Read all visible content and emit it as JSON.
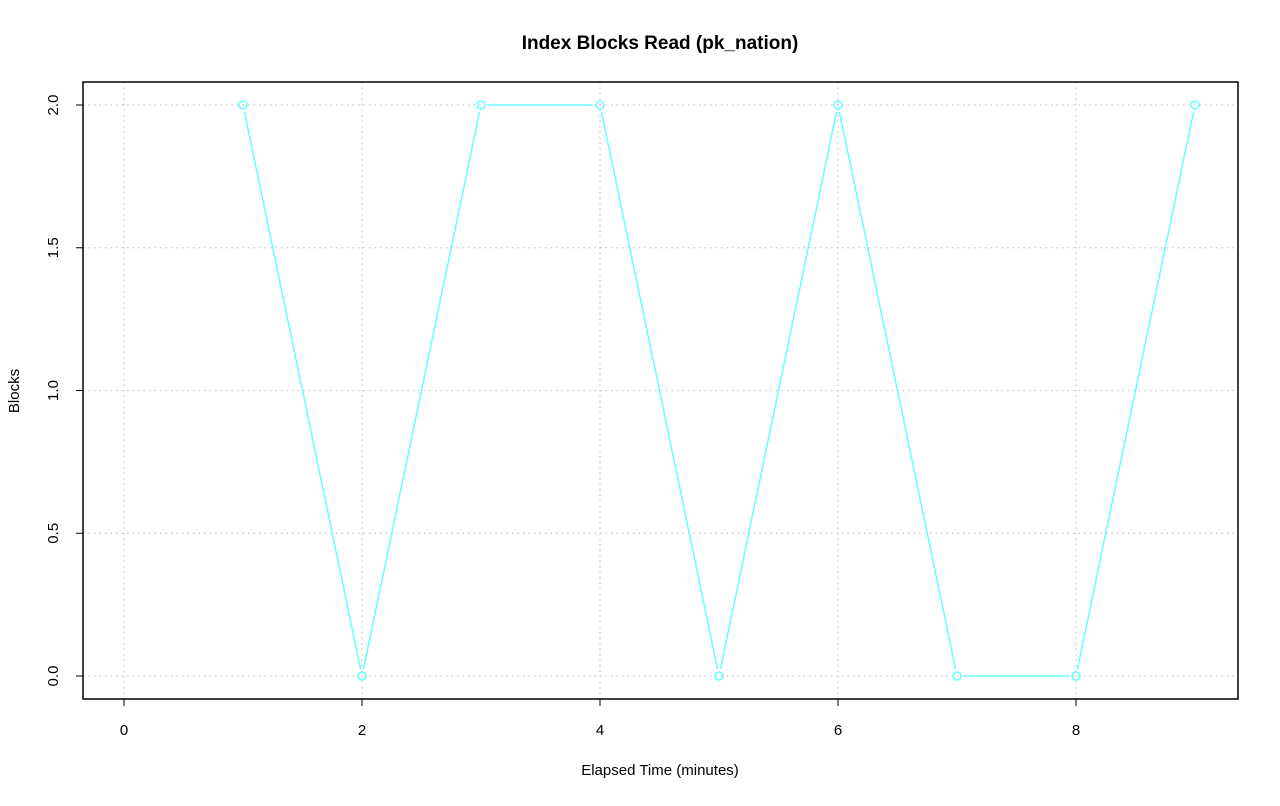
{
  "chart_data": {
    "type": "line",
    "title": "Index Blocks Read (pk_nation)",
    "xlabel": "Elapsed Time (minutes)",
    "ylabel": "Blocks",
    "xlim": [
      0,
      9
    ],
    "ylim": [
      0,
      2
    ],
    "x_ticks": [
      "0",
      "2",
      "4",
      "6",
      "8"
    ],
    "y_ticks": [
      "0.0",
      "0.5",
      "1.0",
      "1.5",
      "2.0"
    ],
    "grid": true,
    "series": [
      {
        "color": "#66ffff",
        "marker": "circle",
        "x": [
          1,
          2,
          3,
          4,
          5,
          6,
          7,
          8,
          9
        ],
        "y": [
          2,
          0,
          2,
          2,
          0,
          2,
          0,
          0,
          2
        ]
      }
    ]
  }
}
